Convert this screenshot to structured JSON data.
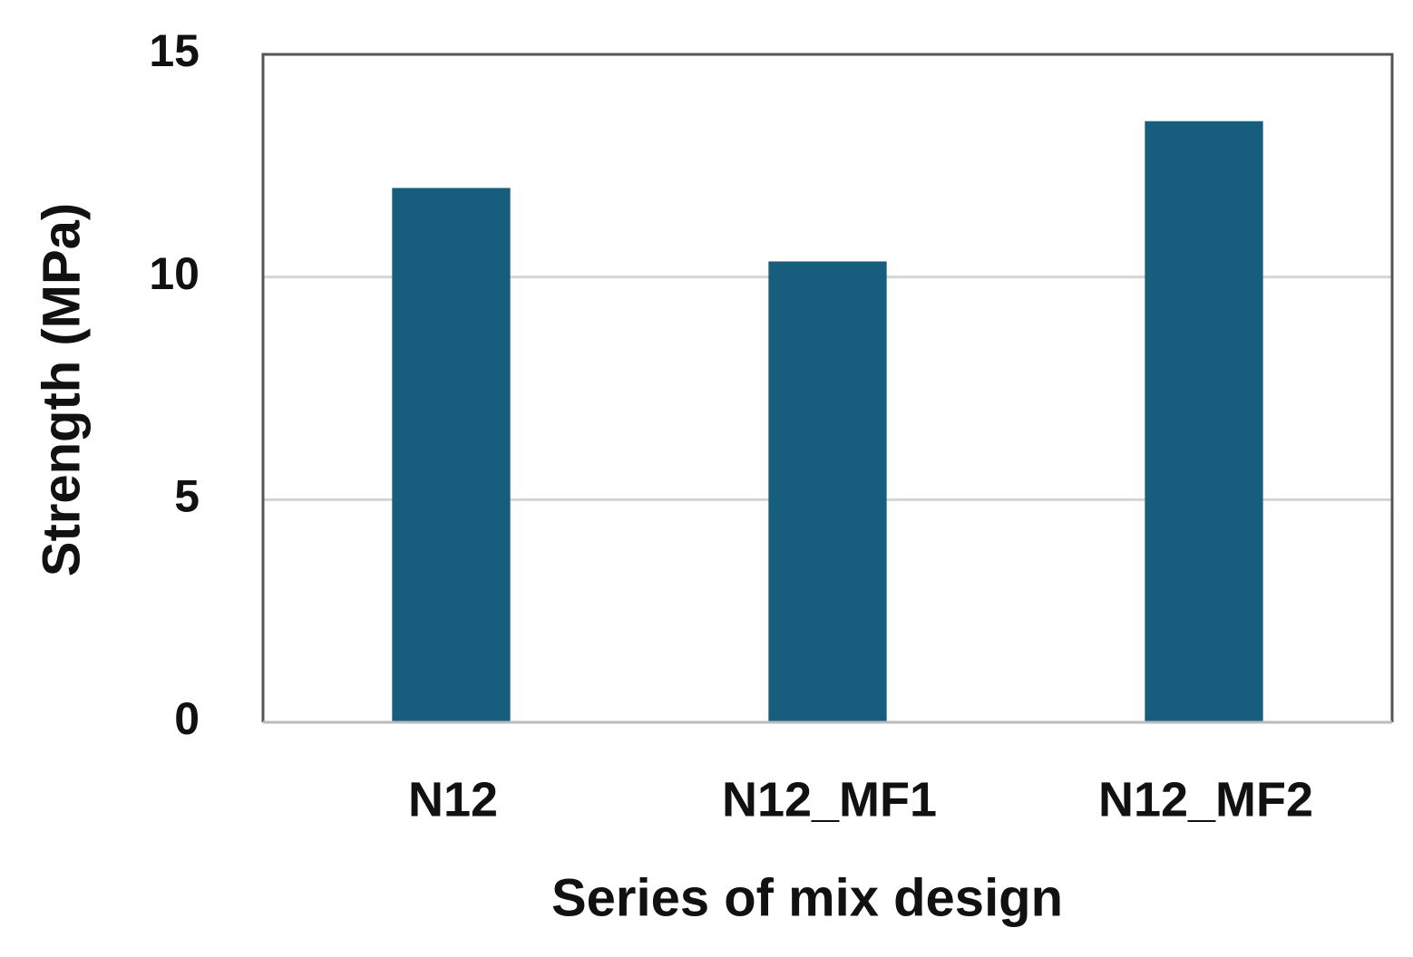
{
  "chart_data": {
    "type": "bar",
    "x_label": "Series of mix design",
    "y_label": "Strength (MPa)",
    "categories": [
      "N12",
      "N12_MF1",
      "N12_MF2"
    ],
    "values": [
      12,
      10.35,
      13.5
    ],
    "color": "#175e7e",
    "ylim": [
      0,
      15
    ],
    "yticks": [
      0,
      5,
      10,
      15
    ],
    "grid": true
  }
}
